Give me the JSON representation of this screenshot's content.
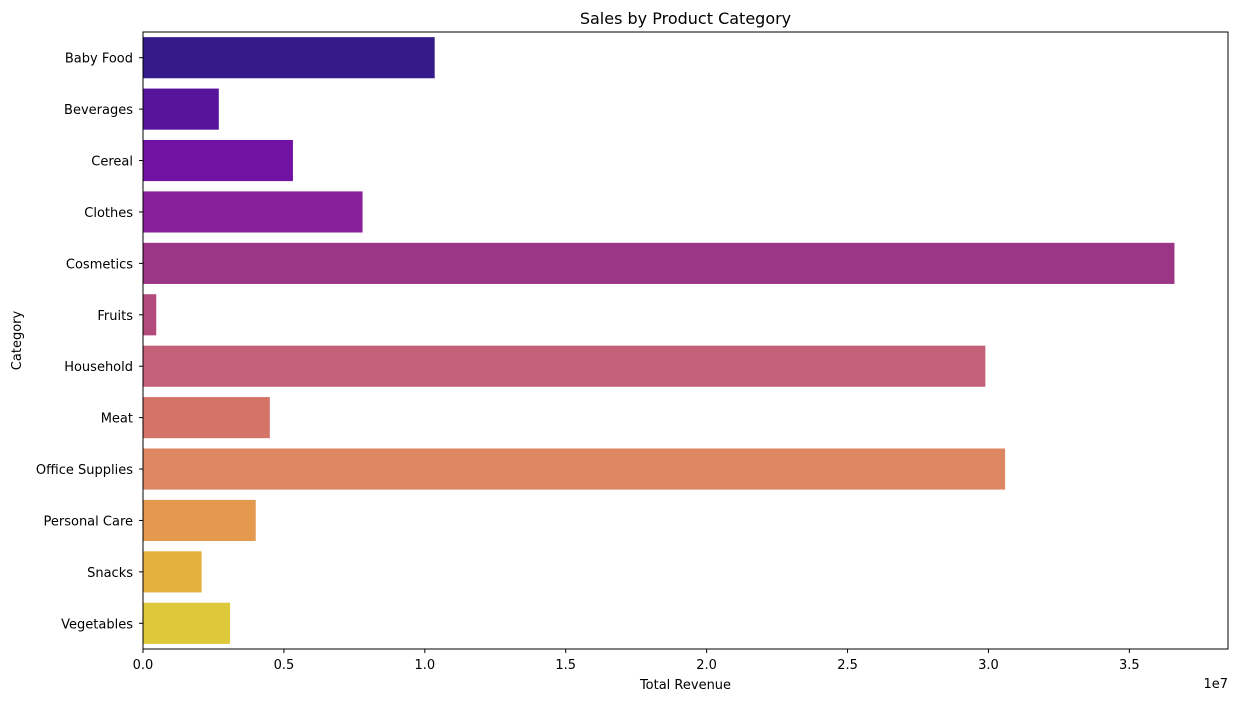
{
  "chart_data": {
    "type": "bar",
    "orientation": "horizontal",
    "title": "Sales by Product Category",
    "xlabel": "Total Revenue",
    "ylabel": "Category",
    "x_scale_label": "1e7",
    "xlim": [
      0,
      38500000
    ],
    "x_ticks": [
      0,
      5000000,
      10000000,
      15000000,
      20000000,
      25000000,
      30000000,
      35000000
    ],
    "x_tick_labels": [
      "0.0",
      "0.5",
      "1.0",
      "1.5",
      "2.0",
      "2.5",
      "3.0",
      "3.5"
    ],
    "grid": false,
    "legend": "none",
    "palette": "plasma",
    "categories": [
      "Baby Food",
      "Beverages",
      "Cereal",
      "Clothes",
      "Cosmetics",
      "Fruits",
      "Household",
      "Meat",
      "Office Supplies",
      "Personal Care",
      "Snacks",
      "Vegetables"
    ],
    "values": [
      10350000,
      2690000,
      5320000,
      7790000,
      36600000,
      470000,
      29890000,
      4500000,
      30590000,
      4000000,
      2080000,
      3090000
    ],
    "colors": [
      "#351a8a",
      "#58159c",
      "#7212a2",
      "#87209a",
      "#9b3586",
      "#b24b7b",
      "#c46078",
      "#d47469",
      "#dc8662",
      "#e39a4f",
      "#e4b13f",
      "#ddc93a"
    ]
  }
}
